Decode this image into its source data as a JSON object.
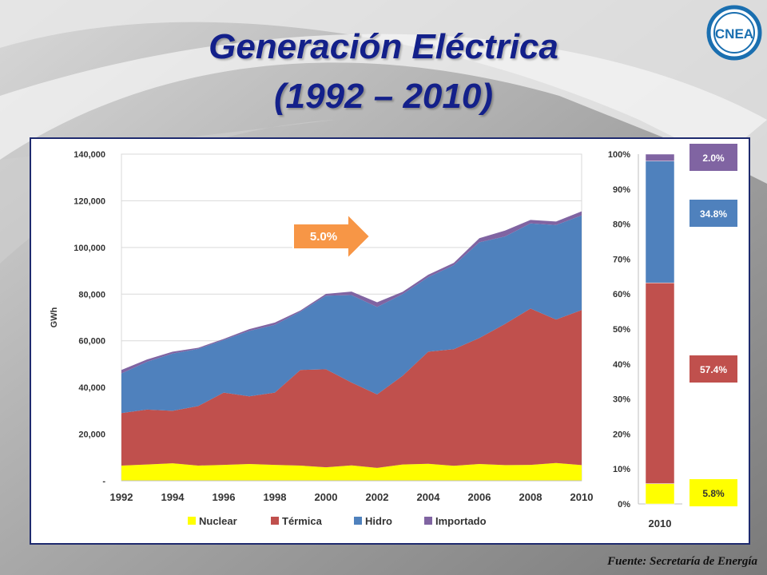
{
  "slide": {
    "title_line1": "Generación Eléctrica",
    "title_line2": "(1992 – 2010)",
    "source": "Fuente: Secretaría de Energía",
    "logo_text": "CNEA"
  },
  "colors": {
    "nuclear": "#ffff00",
    "termica": "#c0504d",
    "hidro": "#4f81bd",
    "importado": "#8064a2",
    "arrow": "#f79646"
  },
  "chart_data": [
    {
      "type": "area",
      "stacked": true,
      "ylabel": "GWh",
      "ylim": [
        0,
        140000
      ],
      "yticks": [
        "-",
        "20,000",
        "40,000",
        "60,000",
        "80,000",
        "100,000",
        "120,000",
        "140,000"
      ],
      "x": [
        1992,
        1993,
        1994,
        1995,
        1996,
        1997,
        1998,
        1999,
        2000,
        2001,
        2002,
        2003,
        2004,
        2005,
        2006,
        2007,
        2008,
        2009,
        2010
      ],
      "xticks": [
        "1992",
        "1994",
        "1996",
        "1998",
        "2000",
        "2002",
        "2004",
        "2006",
        "2008",
        "2010"
      ],
      "grid": true,
      "legend": "bottom",
      "annotation": "5.0%",
      "series": [
        {
          "name": "Nuclear",
          "values": [
            6500,
            7000,
            7500,
            6500,
            6800,
            7200,
            6800,
            6500,
            5800,
            6600,
            5500,
            7000,
            7300,
            6400,
            7200,
            6700,
            6800,
            7600,
            6700
          ]
        },
        {
          "name": "Térmica",
          "values": [
            22500,
            23500,
            22500,
            25500,
            31000,
            29000,
            31000,
            41000,
            42000,
            35500,
            31500,
            38000,
            48000,
            50000,
            54000,
            60500,
            67000,
            61500,
            66500
          ]
        },
        {
          "name": "Hidro",
          "values": [
            17000,
            20500,
            24500,
            24500,
            22500,
            28000,
            29000,
            25000,
            31500,
            37500,
            37500,
            35000,
            32000,
            36000,
            41000,
            37500,
            36500,
            40500,
            40500
          ]
        },
        {
          "name": "Importado",
          "values": [
            1500,
            1000,
            800,
            500,
            500,
            800,
            1000,
            500,
            800,
            1500,
            2000,
            1000,
            1000,
            1000,
            1800,
            2500,
            1500,
            1500,
            1800
          ]
        }
      ]
    },
    {
      "type": "bar",
      "stacked": true,
      "percent": true,
      "categories": [
        "2010"
      ],
      "ylim": [
        0,
        100
      ],
      "yticks": [
        "0%",
        "10%",
        "20%",
        "30%",
        "40%",
        "50%",
        "60%",
        "70%",
        "80%",
        "90%",
        "100%"
      ],
      "series": [
        {
          "name": "Nuclear",
          "values": [
            5.8
          ],
          "label": "5.8%"
        },
        {
          "name": "Térmica",
          "values": [
            57.4
          ],
          "label": "57.4%"
        },
        {
          "name": "Hidro",
          "values": [
            34.8
          ],
          "label": "34.8%"
        },
        {
          "name": "Importado",
          "values": [
            2.0
          ],
          "label": "2.0%"
        }
      ]
    }
  ]
}
